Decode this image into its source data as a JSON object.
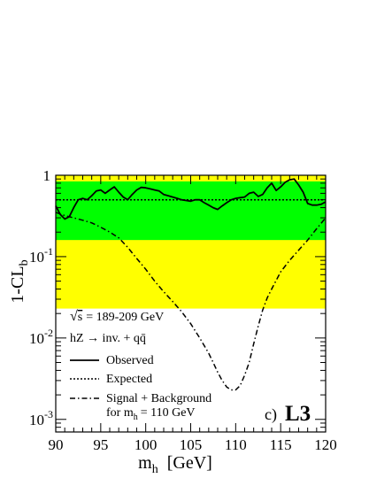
{
  "chart_data": {
    "type": "line",
    "xlabel": "m",
    "xlabel_sub": "h",
    "xlabel_unit": "[GeV]",
    "ylabel": "1-CL",
    "ylabel_sub": "b",
    "xlim": [
      90,
      120
    ],
    "ylim": [
      0.0007,
      1
    ],
    "yscale": "log",
    "x_ticks": [
      90,
      95,
      100,
      105,
      110,
      115,
      120
    ],
    "y_ticks": [
      {
        "value": 1,
        "base": "1",
        "exp": ""
      },
      {
        "value": 0.1,
        "base": "10",
        "exp": "-1"
      },
      {
        "value": 0.01,
        "base": "10",
        "exp": "-2"
      },
      {
        "value": 0.001,
        "base": "10",
        "exp": "-3"
      }
    ],
    "bands": [
      {
        "name": "2 sigma",
        "color": "#ffff00",
        "low": 0.023,
        "high": 1.0
      },
      {
        "name": "1 sigma",
        "color": "#00ff00",
        "low": 0.16,
        "high": 0.84
      }
    ],
    "series": [
      {
        "name": "Observed",
        "style": "solid",
        "x": [
          90,
          90.5,
          91,
          91.5,
          92,
          92.5,
          93,
          93.5,
          94,
          94.5,
          95,
          95.5,
          96,
          96.5,
          97,
          97.5,
          98,
          98.5,
          99,
          99.5,
          100,
          100.5,
          101,
          101.5,
          102,
          102.5,
          103,
          103.5,
          104,
          104.5,
          105,
          105.5,
          106,
          106.5,
          107,
          107.5,
          108,
          108.5,
          109,
          109.5,
          110,
          110.5,
          111,
          111.5,
          112,
          112.5,
          113,
          113.5,
          114,
          114.5,
          115,
          115.5,
          116,
          116.5,
          117,
          117.5,
          118,
          118.5,
          119,
          119.5,
          120
        ],
        "y": [
          0.42,
          0.33,
          0.29,
          0.31,
          0.4,
          0.5,
          0.52,
          0.5,
          0.56,
          0.64,
          0.66,
          0.6,
          0.66,
          0.72,
          0.62,
          0.54,
          0.5,
          0.58,
          0.66,
          0.71,
          0.7,
          0.68,
          0.66,
          0.64,
          0.58,
          0.56,
          0.54,
          0.52,
          0.5,
          0.49,
          0.48,
          0.5,
          0.5,
          0.46,
          0.43,
          0.4,
          0.38,
          0.42,
          0.46,
          0.5,
          0.52,
          0.53,
          0.54,
          0.6,
          0.62,
          0.55,
          0.58,
          0.7,
          0.8,
          0.65,
          0.72,
          0.82,
          0.88,
          0.9,
          0.76,
          0.62,
          0.45,
          0.43,
          0.43,
          0.44,
          0.47
        ]
      },
      {
        "name": "Expected",
        "style": "dotted",
        "x": [
          90,
          120
        ],
        "y": [
          0.5,
          0.5
        ]
      },
      {
        "name": "Signal + Background for m_h = 110 GeV",
        "style": "dash-dot",
        "x": [
          90,
          91,
          92,
          93,
          94,
          95,
          96,
          97,
          98,
          99,
          100,
          101,
          102,
          103,
          104,
          105,
          106,
          107,
          107.5,
          108,
          108.5,
          109,
          109.5,
          110,
          110.5,
          111,
          111.5,
          112,
          112.5,
          113,
          113.5,
          114,
          115,
          116,
          117,
          118,
          119,
          120
        ],
        "y": [
          0.35,
          0.32,
          0.3,
          0.28,
          0.26,
          0.23,
          0.2,
          0.17,
          0.13,
          0.095,
          0.07,
          0.05,
          0.037,
          0.028,
          0.021,
          0.015,
          0.01,
          0.0065,
          0.005,
          0.0038,
          0.003,
          0.0025,
          0.0023,
          0.0023,
          0.0026,
          0.0035,
          0.005,
          0.0085,
          0.014,
          0.022,
          0.031,
          0.04,
          0.065,
          0.09,
          0.12,
          0.16,
          0.22,
          0.3
        ]
      }
    ]
  },
  "legend": {
    "sqrt_symbol": "√",
    "sqrt_s": "s",
    "energy": "= 189-209 GeV",
    "process": "hZ → inv. + qq̄",
    "observed": "Observed",
    "expected": "Expected",
    "signal_line1": "Signal + Background",
    "signal_line2_pre": "for m",
    "signal_line2_sub": "h",
    "signal_line2_post": "= 110 GeV"
  },
  "tag": {
    "panel": "c)",
    "experiment": "L3"
  },
  "colors": {
    "band_2sigma": "#ffff00",
    "band_1sigma": "#00ff00",
    "line": "#000000"
  }
}
